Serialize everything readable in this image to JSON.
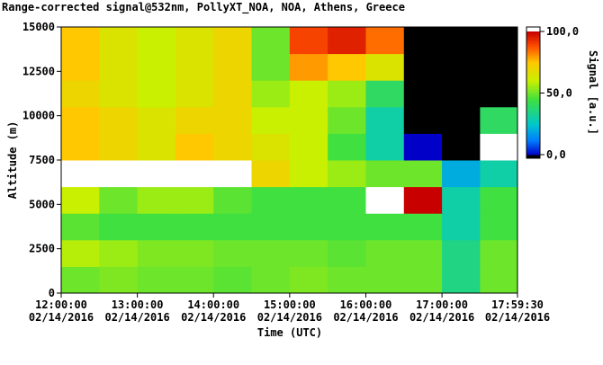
{
  "chart_data": {
    "type": "heatmap",
    "title": "Range-corrected signal@532nm, PollyXT_NOA, NOA, Athens, Greece",
    "xlabel": "Time (UTC)",
    "ylabel": "Altitude (m)",
    "colorbar_label": "Signal [a.u.]",
    "x_bins": [
      12,
      12.5,
      13,
      13.5,
      14,
      14.5,
      15,
      15.5,
      16,
      16.5,
      17,
      17.5,
      18
    ],
    "y_bins": [
      0,
      1500,
      3000,
      4500,
      6000,
      7500,
      9000,
      10500,
      12000,
      13500,
      15000
    ],
    "z": [
      [
        50,
        52,
        50,
        50,
        48,
        50,
        52,
        50,
        50,
        50,
        35,
        50
      ],
      [
        58,
        55,
        52,
        52,
        50,
        50,
        50,
        48,
        50,
        50,
        35,
        50
      ],
      [
        48,
        45,
        45,
        45,
        45,
        45,
        45,
        45,
        45,
        45,
        30,
        45
      ],
      [
        60,
        50,
        55,
        55,
        48,
        45,
        45,
        45,
        110,
        100,
        30,
        45
      ],
      [
        110,
        110,
        110,
        110,
        105,
        70,
        60,
        55,
        50,
        50,
        20,
        30
      ],
      [
        75,
        70,
        65,
        75,
        70,
        65,
        60,
        45,
        30,
        0,
        -10,
        110
      ],
      [
        75,
        70,
        65,
        70,
        70,
        60,
        60,
        50,
        30,
        -5,
        -10,
        40
      ],
      [
        70,
        65,
        60,
        65,
        70,
        55,
        60,
        55,
        40,
        -10,
        -10,
        -10
      ],
      [
        75,
        65,
        60,
        65,
        70,
        50,
        80,
        75,
        65,
        -10,
        -10,
        -10
      ],
      [
        75,
        65,
        60,
        65,
        70,
        50,
        90,
        95,
        85,
        -10,
        -10,
        -10
      ]
    ],
    "xlim": [
      12,
      17.9917
    ],
    "ylim": [
      0,
      15000
    ],
    "xticks": [
      {
        "value": 12,
        "label": [
          "12:00:00",
          "02/14/2016"
        ]
      },
      {
        "value": 13,
        "label": [
          "13:00:00",
          "02/14/2016"
        ]
      },
      {
        "value": 14,
        "label": [
          "14:00:00",
          "02/14/2016"
        ]
      },
      {
        "value": 15,
        "label": [
          "15:00:00",
          "02/14/2016"
        ]
      },
      {
        "value": 16,
        "label": [
          "16:00:00",
          "02/14/2016"
        ]
      },
      {
        "value": 17,
        "label": [
          "17:00:00",
          "02/14/2016"
        ]
      },
      {
        "value": 17.9917,
        "label": [
          "17:59:30",
          "02/14/2016"
        ]
      }
    ],
    "yticks": [
      0,
      2500,
      5000,
      7500,
      10000,
      12500,
      15000
    ],
    "clim": [
      0,
      100
    ],
    "cticks": [
      {
        "value": 0,
        "label": "0,0"
      },
      {
        "value": 50,
        "label": "50,0"
      },
      {
        "value": 100,
        "label": "100,0"
      }
    ],
    "colormap": [
      {
        "value": 0,
        "color": "#0000c8"
      },
      {
        "value": 12,
        "color": "#0080ff"
      },
      {
        "value": 25,
        "color": "#00c8c8"
      },
      {
        "value": 45,
        "color": "#40e040"
      },
      {
        "value": 60,
        "color": "#c8f000"
      },
      {
        "value": 75,
        "color": "#ffc800"
      },
      {
        "value": 88,
        "color": "#ff5000"
      },
      {
        "value": 100,
        "color": "#c80000"
      }
    ],
    "over_color": "#ffffff",
    "under_color": "#000000"
  }
}
